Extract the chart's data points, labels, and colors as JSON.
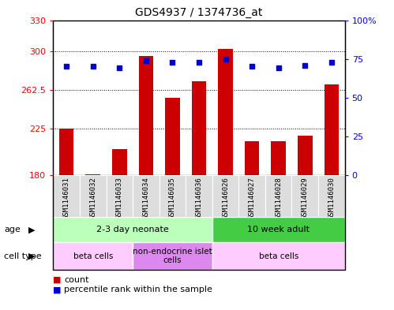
{
  "title": "GDS4937 / 1374736_at",
  "samples": [
    "GSM1146031",
    "GSM1146032",
    "GSM1146033",
    "GSM1146034",
    "GSM1146035",
    "GSM1146036",
    "GSM1146026",
    "GSM1146027",
    "GSM1146028",
    "GSM1146029",
    "GSM1146030"
  ],
  "bar_values": [
    225,
    181,
    205,
    295,
    255,
    271,
    302,
    213,
    213,
    218,
    268
  ],
  "percentile_values": [
    70,
    70,
    69,
    74,
    73,
    73,
    75,
    70,
    69,
    71,
    73
  ],
  "ylim_left": [
    180,
    330
  ],
  "ylim_right": [
    0,
    100
  ],
  "yticks_left": [
    180,
    225,
    262.5,
    300,
    330
  ],
  "yticks_right": [
    0,
    25,
    50,
    75,
    100
  ],
  "bar_color": "#cc0000",
  "dot_color": "#0000cc",
  "age_groups": [
    {
      "label": "2-3 day neonate",
      "start": 0,
      "end": 6,
      "color": "#bbffbb"
    },
    {
      "label": "10 week adult",
      "start": 6,
      "end": 11,
      "color": "#44cc44"
    }
  ],
  "cell_type_groups": [
    {
      "label": "beta cells",
      "start": 0,
      "end": 3,
      "color": "#ffccff"
    },
    {
      "label": "non-endocrine islet\ncells",
      "start": 3,
      "end": 6,
      "color": "#dd88ee"
    },
    {
      "label": "beta cells",
      "start": 6,
      "end": 11,
      "color": "#ffccff"
    }
  ],
  "legend_count_color": "#cc0000",
  "legend_pct_color": "#0000cc",
  "bar_bottom": 180,
  "sample_bg_color": "#dddddd"
}
